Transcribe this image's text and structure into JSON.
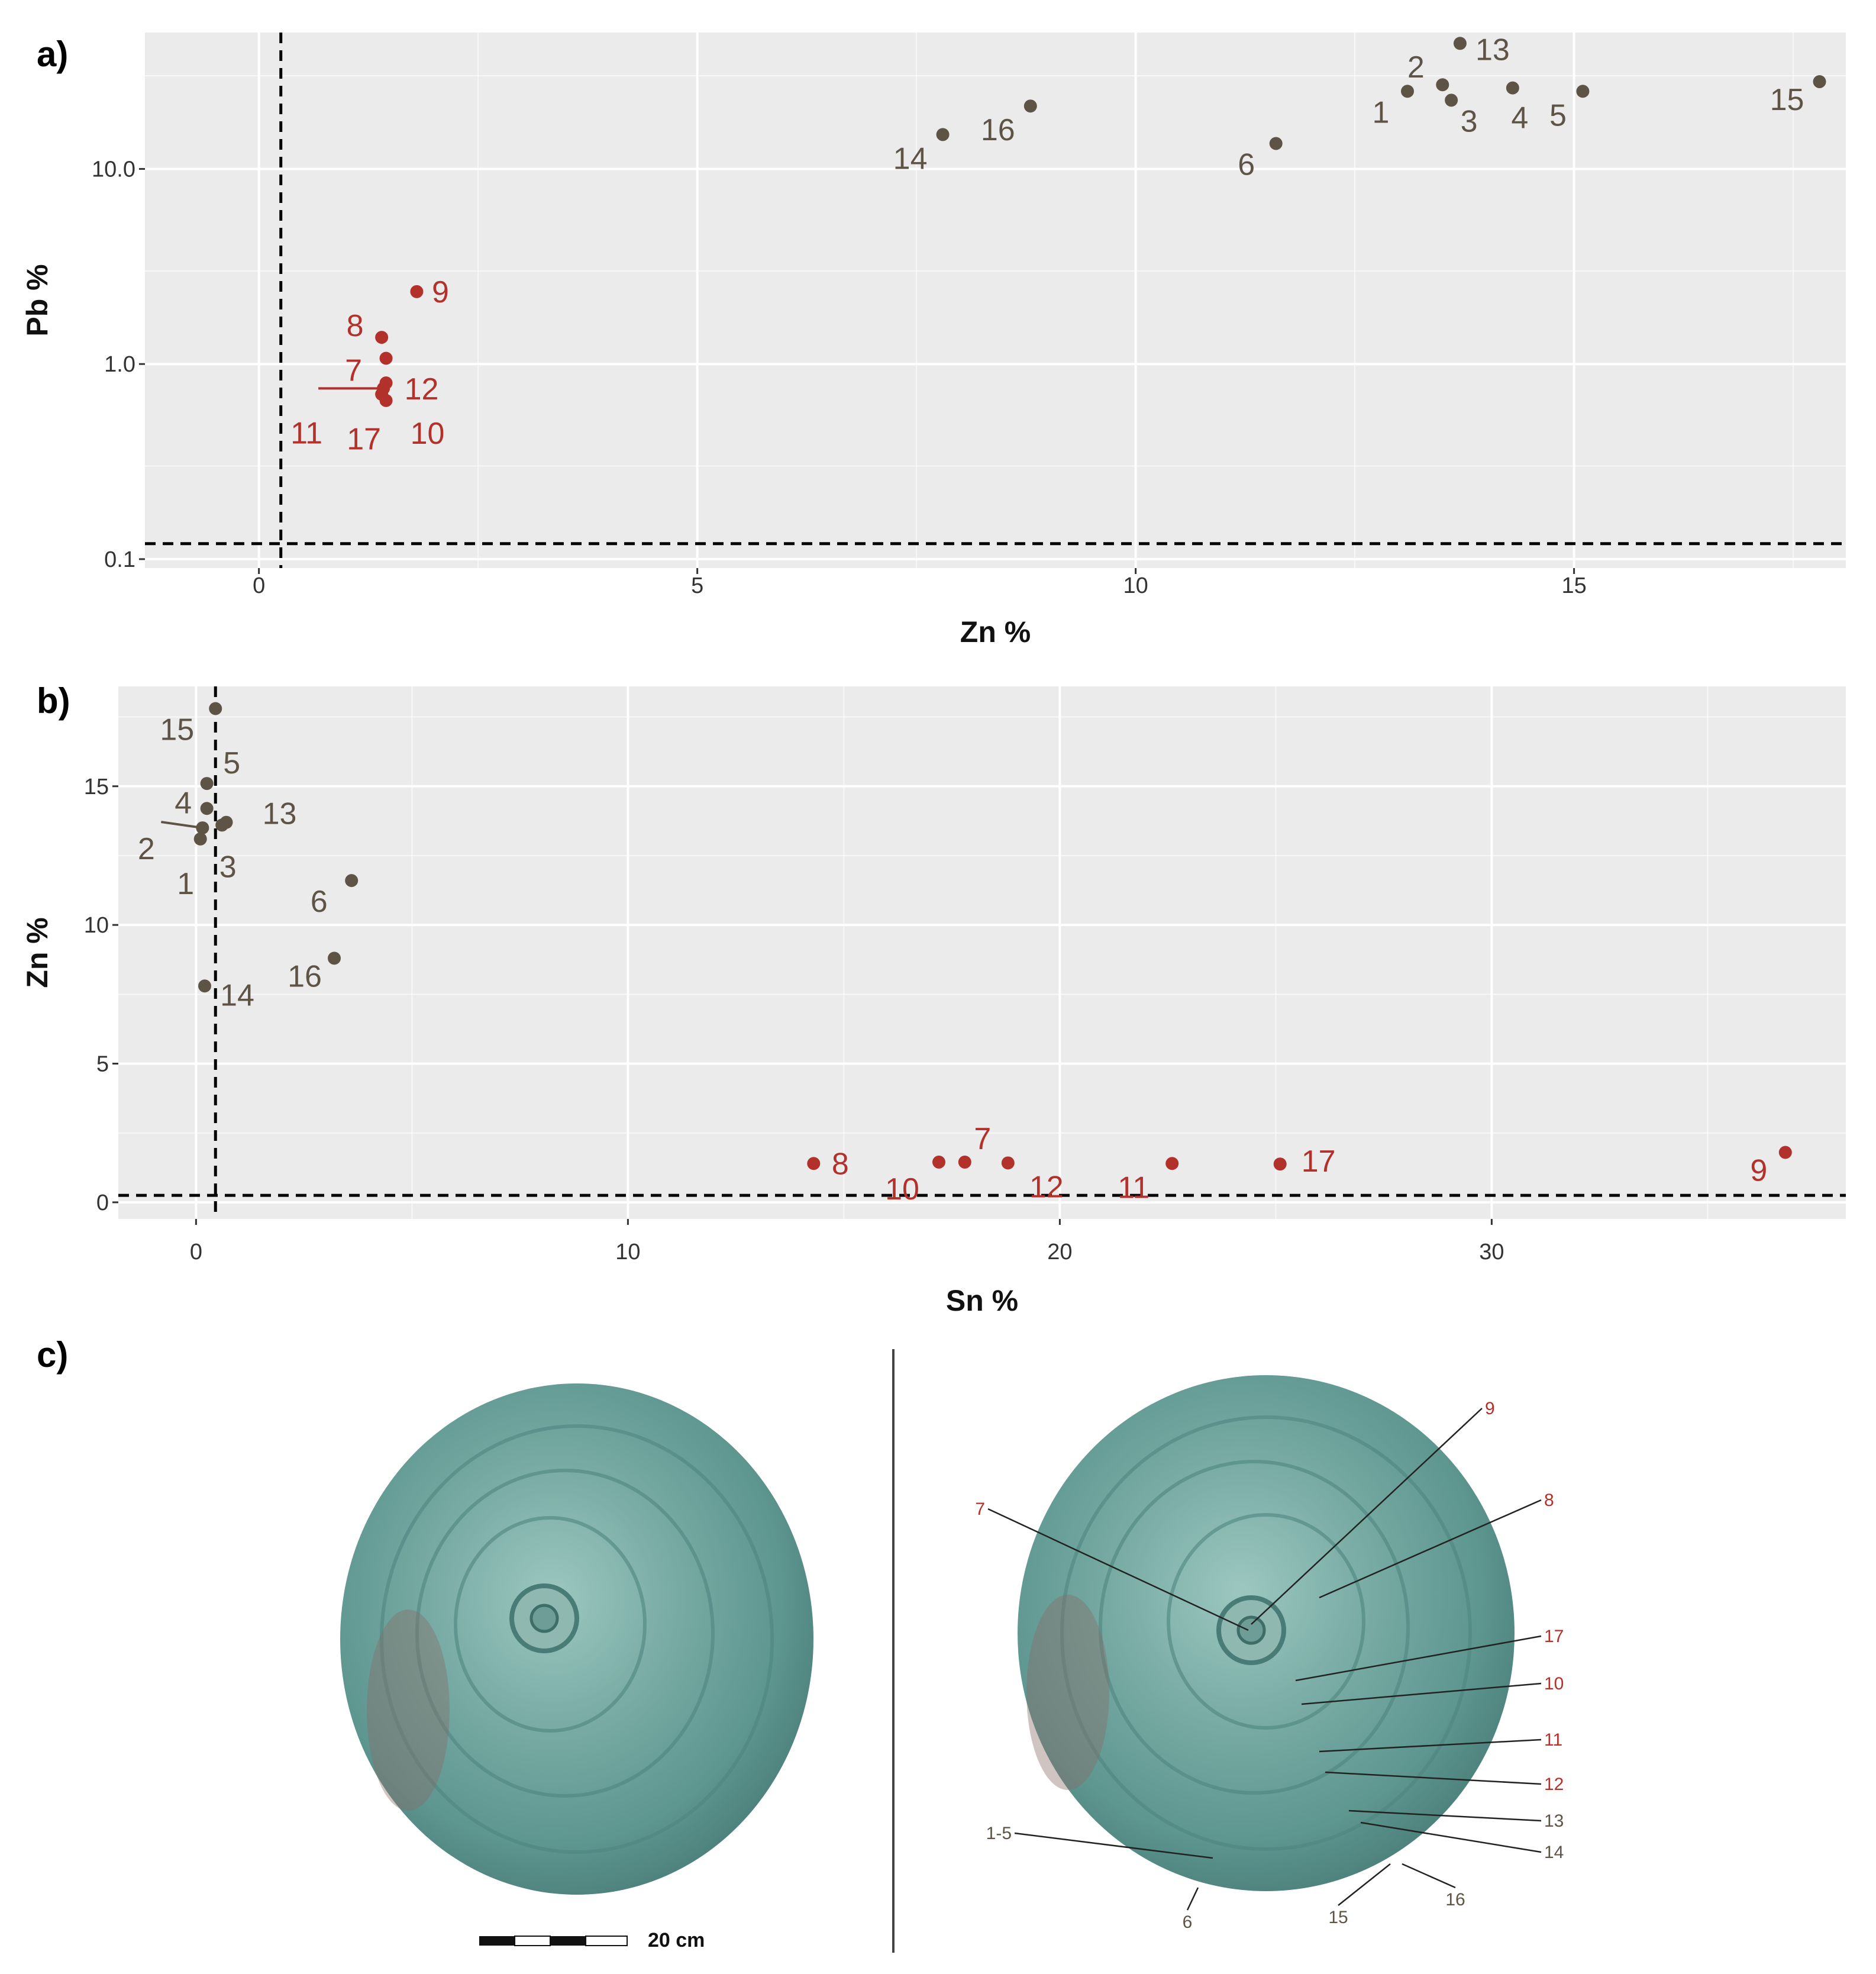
{
  "panels": {
    "a": "a)",
    "b": "b)",
    "c": "c)"
  },
  "colors": {
    "group_brass": "#5e5446",
    "group_bronze": "#b2312b",
    "background": "#ebebeb",
    "grid": "#ffffff",
    "threshold_line": "#000000"
  },
  "chart_data": [
    {
      "type": "scatter",
      "panel": "a)",
      "xlabel": "Zn %",
      "ylabel": "Pb %",
      "y_scale": "log10",
      "xlim": [
        -1.3,
        18.1
      ],
      "ylim": [
        0.09,
        50
      ],
      "xticks": [
        0,
        5,
        10,
        15
      ],
      "xtick_labels": [
        "0",
        "5",
        "10",
        "15"
      ],
      "yticks": [
        0.1,
        1.0,
        10.0
      ],
      "ytick_labels": [
        "0.1",
        "1.0",
        "10.0"
      ],
      "grid": true,
      "threshold_lines": {
        "x": 0.25,
        "y": 0.12
      },
      "points": [
        {
          "label": "1",
          "x": 13.1,
          "y": 25.0,
          "group": "brass"
        },
        {
          "label": "2",
          "x": 13.5,
          "y": 27.0,
          "group": "brass"
        },
        {
          "label": "3",
          "x": 13.6,
          "y": 22.5,
          "group": "brass"
        },
        {
          "label": "4",
          "x": 14.3,
          "y": 26.0,
          "group": "brass"
        },
        {
          "label": "5",
          "x": 15.1,
          "y": 25.0,
          "group": "brass"
        },
        {
          "label": "6",
          "x": 11.6,
          "y": 13.5,
          "group": "brass"
        },
        {
          "label": "13",
          "x": 13.7,
          "y": 44.0,
          "group": "brass"
        },
        {
          "label": "14",
          "x": 7.8,
          "y": 15.0,
          "group": "brass"
        },
        {
          "label": "15",
          "x": 17.8,
          "y": 28.0,
          "group": "brass"
        },
        {
          "label": "16",
          "x": 8.8,
          "y": 21.0,
          "group": "brass"
        },
        {
          "label": "7",
          "x": 1.45,
          "y": 1.07,
          "group": "bronze"
        },
        {
          "label": "8",
          "x": 1.4,
          "y": 1.37,
          "group": "bronze"
        },
        {
          "label": "9",
          "x": 1.8,
          "y": 2.35,
          "group": "bronze"
        },
        {
          "label": "10",
          "x": 1.45,
          "y": 0.65,
          "group": "bronze"
        },
        {
          "label": "11",
          "x": 1.42,
          "y": 0.75,
          "group": "bronze"
        },
        {
          "label": "12",
          "x": 1.45,
          "y": 0.8,
          "group": "bronze"
        },
        {
          "label": "17",
          "x": 1.4,
          "y": 0.7,
          "group": "bronze"
        }
      ]
    },
    {
      "type": "scatter",
      "panel": "b)",
      "xlabel": "Sn %",
      "ylabel": "Zn %",
      "xlim": [
        -1.8,
        38.2
      ],
      "ylim": [
        -0.6,
        18.6
      ],
      "xticks": [
        0,
        10,
        20,
        30
      ],
      "xtick_labels": [
        "0",
        "10",
        "20",
        "30"
      ],
      "yticks": [
        0,
        5,
        10,
        15
      ],
      "ytick_labels": [
        "0",
        "5",
        "10",
        "15"
      ],
      "grid": true,
      "threshold_lines": {
        "x": 0.45,
        "y": 0.25
      },
      "points": [
        {
          "label": "1",
          "x": 0.1,
          "y": 13.1,
          "group": "brass"
        },
        {
          "label": "2",
          "x": 0.15,
          "y": 13.5,
          "group": "brass"
        },
        {
          "label": "3",
          "x": 0.6,
          "y": 13.6,
          "group": "brass"
        },
        {
          "label": "4",
          "x": 0.25,
          "y": 14.2,
          "group": "brass"
        },
        {
          "label": "5",
          "x": 0.25,
          "y": 15.1,
          "group": "brass"
        },
        {
          "label": "6",
          "x": 3.6,
          "y": 11.6,
          "group": "brass"
        },
        {
          "label": "13",
          "x": 0.7,
          "y": 13.7,
          "group": "brass"
        },
        {
          "label": "14",
          "x": 0.2,
          "y": 7.8,
          "group": "brass"
        },
        {
          "label": "15",
          "x": 0.45,
          "y": 17.8,
          "group": "brass"
        },
        {
          "label": "16",
          "x": 3.2,
          "y": 8.8,
          "group": "brass"
        },
        {
          "label": "7",
          "x": 17.8,
          "y": 1.45,
          "group": "bronze"
        },
        {
          "label": "8",
          "x": 14.3,
          "y": 1.4,
          "group": "bronze"
        },
        {
          "label": "9",
          "x": 36.8,
          "y": 1.8,
          "group": "bronze"
        },
        {
          "label": "10",
          "x": 17.2,
          "y": 1.45,
          "group": "bronze"
        },
        {
          "label": "11",
          "x": 22.6,
          "y": 1.4,
          "group": "bronze"
        },
        {
          "label": "12",
          "x": 18.8,
          "y": 1.42,
          "group": "bronze"
        },
        {
          "label": "17",
          "x": 25.1,
          "y": 1.38,
          "group": "bronze"
        }
      ]
    }
  ],
  "photo": {
    "scale_bar_label": "20 cm",
    "sample_labels": [
      {
        "text": "9",
        "group": "bronze"
      },
      {
        "text": "8",
        "group": "bronze"
      },
      {
        "text": "7",
        "group": "bronze"
      },
      {
        "text": "17",
        "group": "bronze"
      },
      {
        "text": "10",
        "group": "bronze"
      },
      {
        "text": "11",
        "group": "bronze"
      },
      {
        "text": "12",
        "group": "bronze"
      },
      {
        "text": "13",
        "group": "brass"
      },
      {
        "text": "14",
        "group": "brass"
      },
      {
        "text": "1-5",
        "group": "brass"
      },
      {
        "text": "16",
        "group": "brass"
      },
      {
        "text": "15",
        "group": "brass"
      },
      {
        "text": "6",
        "group": "brass"
      }
    ]
  }
}
